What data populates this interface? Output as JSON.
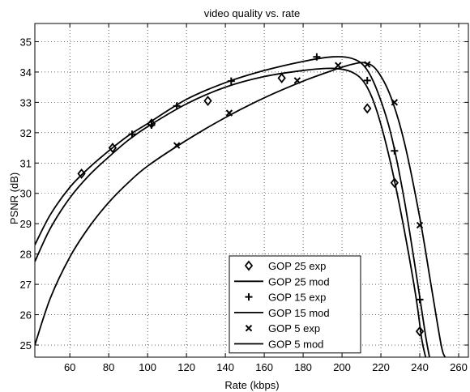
{
  "chart_data": {
    "type": "line",
    "title": "video quality vs. rate",
    "xlabel": "Rate (kbps)",
    "ylabel": "PSNR (dB)",
    "xlim": [
      42,
      265
    ],
    "ylim": [
      24.6,
      35.6
    ],
    "xticks": [
      60,
      80,
      100,
      120,
      140,
      160,
      180,
      200,
      220,
      240,
      260
    ],
    "yticks": [
      25,
      26,
      27,
      28,
      29,
      30,
      31,
      32,
      33,
      34,
      35
    ],
    "grid": true,
    "legend_position": "bottom-center",
    "colors": {
      "line": "#000000",
      "axes": "#000000",
      "grid": "#000000"
    },
    "series": [
      {
        "name": "GOP 25 exp",
        "kind": "markers",
        "marker": "diamond",
        "points": [
          [
            66,
            30.65
          ],
          [
            82,
            31.5
          ],
          [
            102,
            32.3
          ],
          [
            131,
            33.05
          ],
          [
            169,
            33.8
          ],
          [
            213,
            32.8
          ],
          [
            227,
            30.35
          ],
          [
            240,
            25.45
          ]
        ]
      },
      {
        "name": "GOP 25 mod",
        "kind": "line",
        "points": [
          [
            42,
            27.75
          ],
          [
            50,
            28.85
          ],
          [
            60,
            29.85
          ],
          [
            70,
            30.6
          ],
          [
            80,
            31.2
          ],
          [
            90,
            31.75
          ],
          [
            100,
            32.2
          ],
          [
            120,
            32.95
          ],
          [
            140,
            33.5
          ],
          [
            160,
            33.85
          ],
          [
            180,
            34.05
          ],
          [
            195,
            34.12
          ],
          [
            205,
            34.0
          ],
          [
            212,
            33.6
          ],
          [
            218,
            32.7
          ],
          [
            225,
            31.0
          ],
          [
            232,
            28.8
          ],
          [
            238,
            26.6
          ],
          [
            241,
            25.2
          ],
          [
            243,
            24.6
          ]
        ]
      },
      {
        "name": "GOP 15 exp",
        "kind": "markers",
        "marker": "plus",
        "points": [
          [
            92,
            31.95
          ],
          [
            102,
            32.25
          ],
          [
            115,
            32.88
          ],
          [
            143,
            33.7
          ],
          [
            187,
            34.5
          ],
          [
            213,
            33.72
          ],
          [
            227,
            31.4
          ],
          [
            240,
            26.5
          ]
        ]
      },
      {
        "name": "GOP 15 mod",
        "kind": "line",
        "points": [
          [
            42,
            28.3
          ],
          [
            50,
            29.3
          ],
          [
            60,
            30.2
          ],
          [
            70,
            30.85
          ],
          [
            80,
            31.4
          ],
          [
            90,
            31.9
          ],
          [
            100,
            32.3
          ],
          [
            120,
            33.1
          ],
          [
            140,
            33.65
          ],
          [
            160,
            34.05
          ],
          [
            180,
            34.35
          ],
          [
            195,
            34.5
          ],
          [
            205,
            34.45
          ],
          [
            212,
            34.15
          ],
          [
            218,
            33.4
          ],
          [
            225,
            32.0
          ],
          [
            232,
            29.8
          ],
          [
            239,
            27.0
          ],
          [
            243,
            25.3
          ],
          [
            245,
            24.6
          ]
        ]
      },
      {
        "name": "GOP 5 exp",
        "kind": "markers",
        "marker": "x",
        "points": [
          [
            115,
            31.58
          ],
          [
            142,
            32.65
          ],
          [
            177,
            33.72
          ],
          [
            198,
            34.22
          ],
          [
            213,
            34.25
          ],
          [
            227,
            33.0
          ],
          [
            240,
            28.95
          ]
        ]
      },
      {
        "name": "GOP 5 mod",
        "kind": "line",
        "points": [
          [
            42,
            25.0
          ],
          [
            50,
            26.55
          ],
          [
            60,
            27.9
          ],
          [
            70,
            28.9
          ],
          [
            80,
            29.7
          ],
          [
            90,
            30.35
          ],
          [
            100,
            30.9
          ],
          [
            120,
            31.75
          ],
          [
            140,
            32.5
          ],
          [
            160,
            33.15
          ],
          [
            180,
            33.7
          ],
          [
            195,
            34.05
          ],
          [
            205,
            34.25
          ],
          [
            212,
            34.3
          ],
          [
            218,
            34.05
          ],
          [
            225,
            33.2
          ],
          [
            232,
            31.7
          ],
          [
            240,
            29.2
          ],
          [
            246,
            26.9
          ],
          [
            251,
            25.0
          ],
          [
            253,
            24.6
          ]
        ]
      }
    ]
  }
}
